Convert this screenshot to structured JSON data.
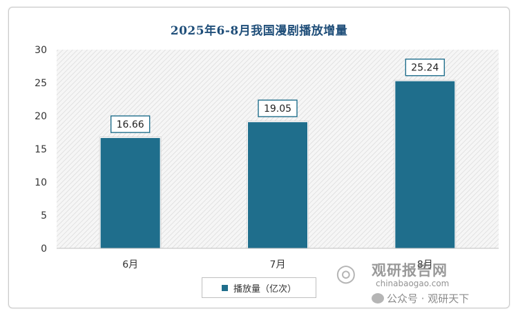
{
  "chart_data": {
    "type": "bar",
    "title": "2025年6-8月我国漫剧播放增量",
    "categories": [
      "6月",
      "7月",
      "8月"
    ],
    "series": [
      {
        "name": "播放量（亿次）",
        "values": [
          16.66,
          19.05,
          25.24
        ]
      }
    ],
    "value_labels": [
      "16.66",
      "19.05",
      "25.24"
    ],
    "ylim": [
      0,
      30
    ],
    "yticks": [
      0,
      5,
      10,
      15,
      20,
      25,
      30
    ],
    "grid": false,
    "legend": "bottom",
    "bar_color": "#1f6e8c"
  },
  "watermark": {
    "logo_icon": "globe-swirl-icon",
    "cn_text": "观研报告网",
    "en_text": "chinabaogao.com",
    "social_icon": "wechat-icon",
    "social_text": "公众号 · 观研天下"
  }
}
